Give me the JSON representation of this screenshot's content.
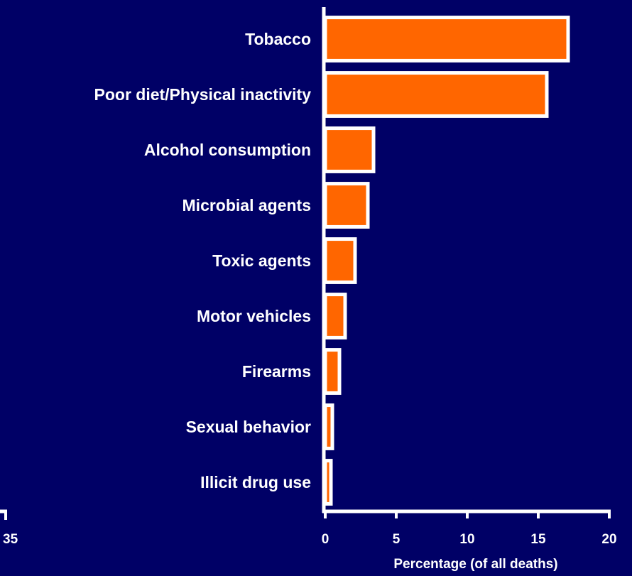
{
  "colors": {
    "background": "#000066",
    "bar_fill": "#ff6600",
    "bar_outline": "#ffffff",
    "text": "#ffffff",
    "axis": "#ffffff"
  },
  "chart_data": {
    "type": "bar",
    "orientation": "horizontal",
    "categories": [
      "Tobacco",
      "Poor diet/Physical inactivity",
      "Alcohol consumption",
      "Microbial agents",
      "Toxic agents",
      "Motor vehicles",
      "Firearms",
      "Sexual behavior",
      "Illicit drug use"
    ],
    "values": [
      17.1,
      15.6,
      3.4,
      3.0,
      2.1,
      1.4,
      1.0,
      0.5,
      0.4
    ],
    "xlabel": "Percentage (of all deaths)",
    "xlim": [
      0,
      20
    ],
    "xticks": [
      "0",
      "5",
      "10",
      "15",
      "20"
    ],
    "partial_tick_label": "35",
    "grid": false,
    "legend": "none"
  }
}
